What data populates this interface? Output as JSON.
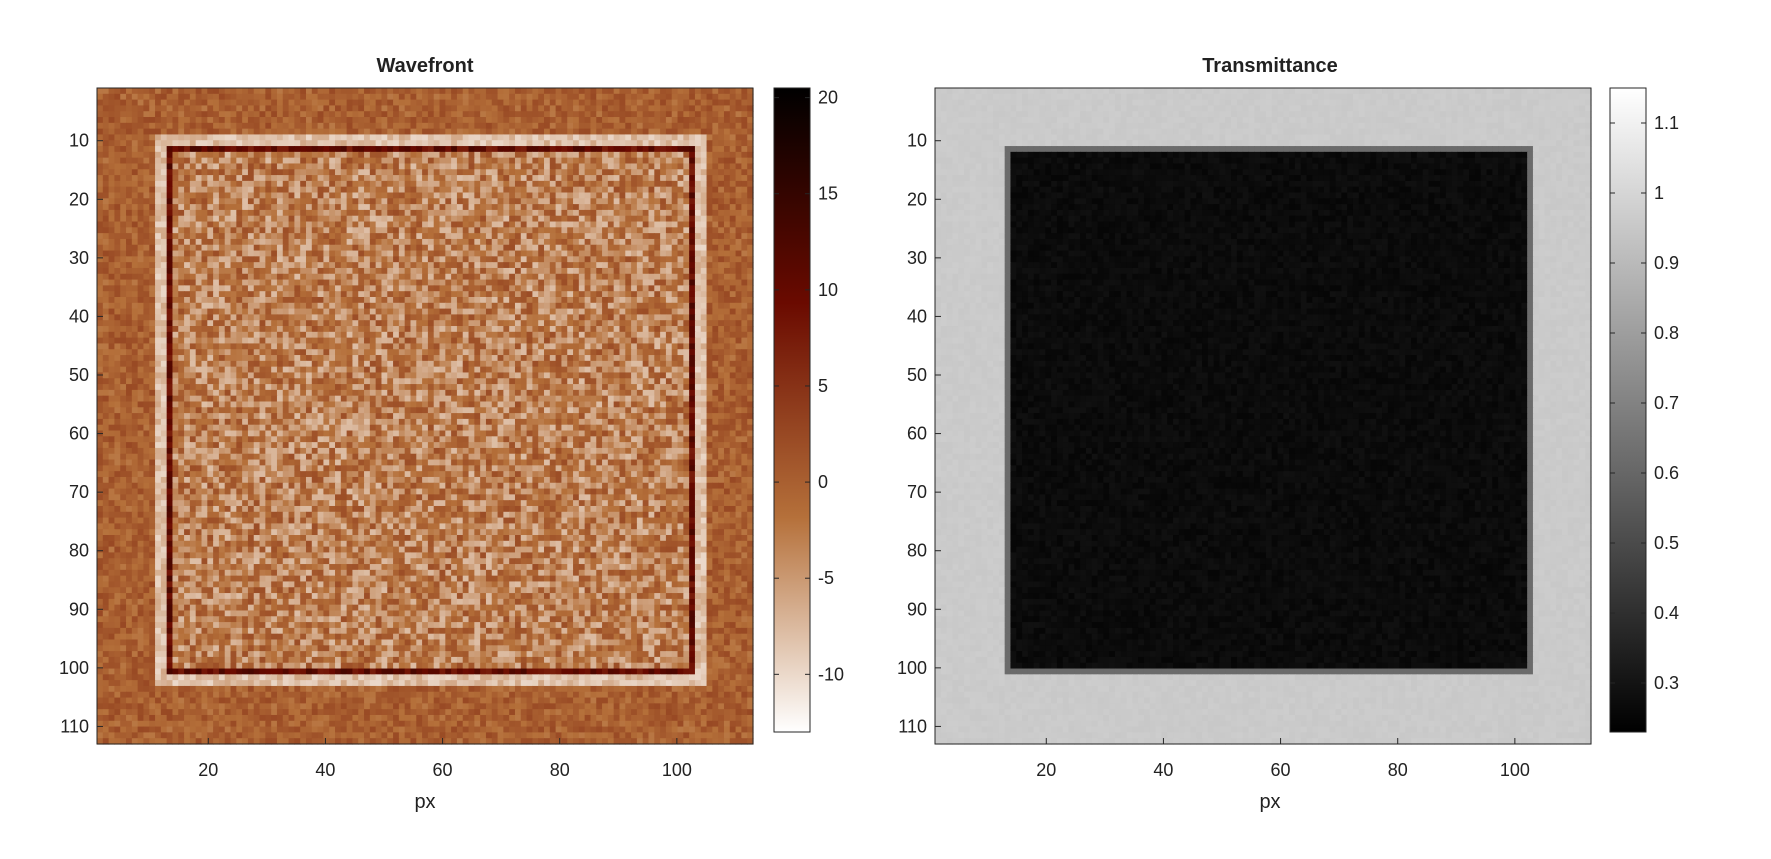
{
  "chart_data": [
    {
      "type": "heatmap",
      "title": "Wavefront",
      "xlabel": "px",
      "ylabel": "",
      "x_range": [
        1,
        113
      ],
      "y_range": [
        1,
        113
      ],
      "xticks": [
        20,
        40,
        60,
        80,
        100
      ],
      "yticks": [
        10,
        20,
        30,
        40,
        50,
        60,
        70,
        80,
        90,
        100,
        110
      ],
      "colormap": "copper-white (high = dark brown/black, low = white)",
      "colorbar": {
        "range": [
          -13,
          20.5
        ],
        "ticks": [
          -10,
          -5,
          0,
          5,
          10,
          15,
          20
        ],
        "colors": [
          "#ffffff",
          "#b5703a",
          "#6a0a00",
          "#000000"
        ]
      },
      "description_values": {
        "background_level": 0,
        "square_interior_level": -3,
        "square_border_level": 10,
        "square_border_halo_level": -8,
        "square_x_range": [
          13,
          103
        ],
        "square_y_range": [
          11,
          101
        ]
      }
    },
    {
      "type": "heatmap",
      "title": "Transmittance",
      "xlabel": "px",
      "ylabel": "",
      "x_range": [
        1,
        113
      ],
      "y_range": [
        1,
        113
      ],
      "xticks": [
        20,
        40,
        60,
        80,
        100
      ],
      "yticks": [
        10,
        20,
        30,
        40,
        50,
        60,
        70,
        80,
        90,
        100,
        110
      ],
      "colormap": "gray",
      "colorbar": {
        "range": [
          0.23,
          1.15
        ],
        "ticks": [
          0.3,
          0.4,
          0.5,
          0.6,
          0.7,
          0.8,
          0.9,
          1,
          1.1
        ],
        "colors": [
          "#000000",
          "#ffffff"
        ]
      },
      "description_values": {
        "background_level": 0.96,
        "square_interior_level": 0.27,
        "square_x_range": [
          13,
          103
        ],
        "square_y_range": [
          11,
          101
        ]
      }
    }
  ]
}
